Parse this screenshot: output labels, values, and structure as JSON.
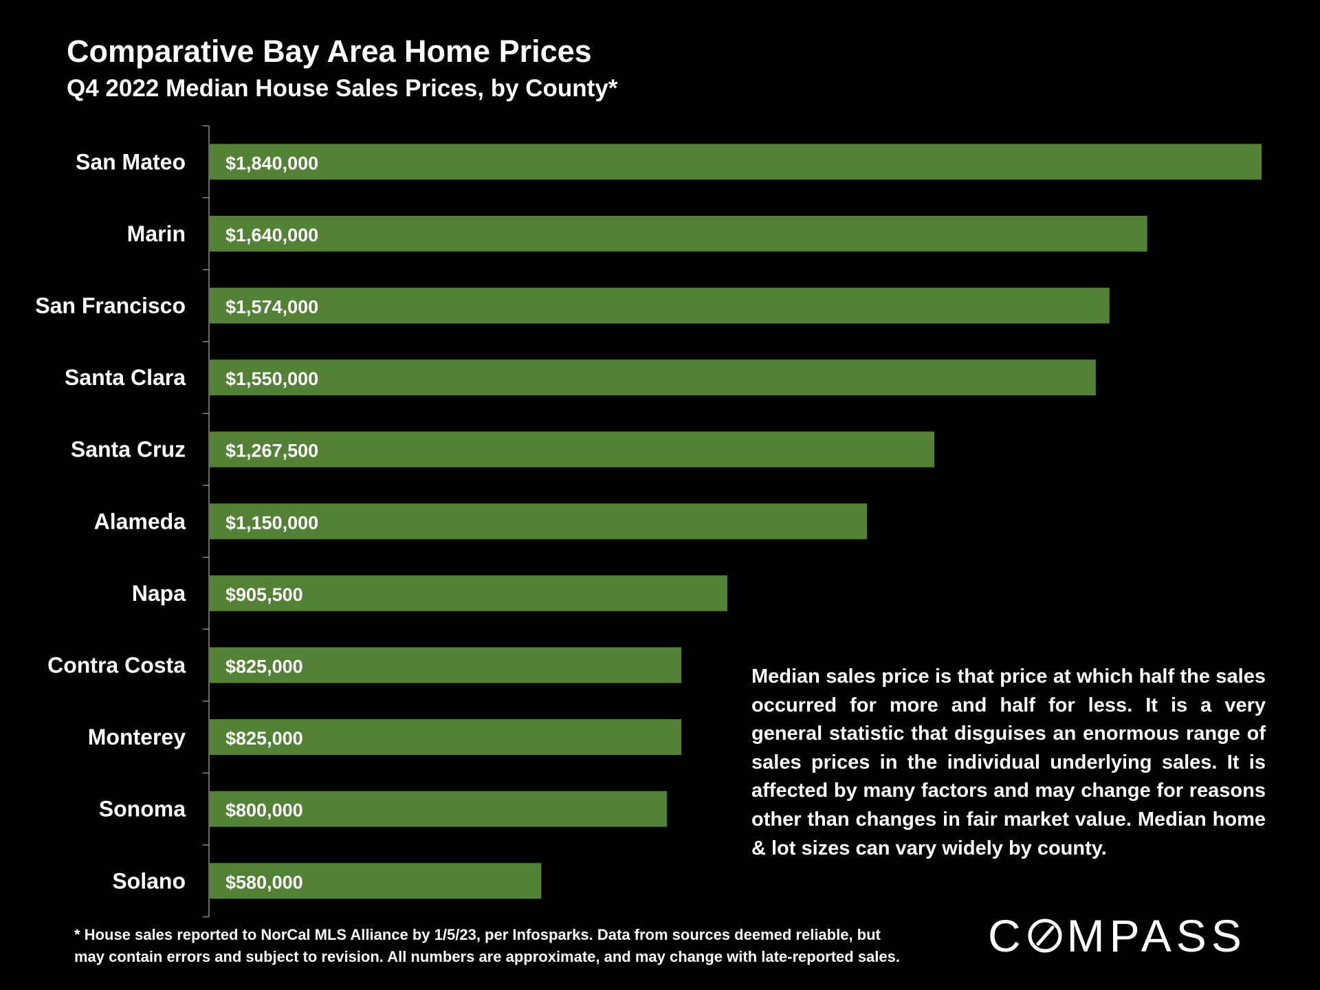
{
  "title": "Comparative Bay Area Home Prices",
  "subtitle": "Q4 2022 Median House Sales Prices, by County*",
  "chart_data": {
    "type": "bar",
    "orientation": "horizontal",
    "title": "Comparative Bay Area Home Prices",
    "subtitle": "Q4 2022 Median House Sales Prices, by County*",
    "categories": [
      "San Mateo",
      "Marin",
      "San Francisco",
      "Santa Clara",
      "Santa Cruz",
      "Alameda",
      "Napa",
      "Contra Costa",
      "Monterey",
      "Sonoma",
      "Solano"
    ],
    "values": [
      1840000,
      1640000,
      1574000,
      1550000,
      1267500,
      1150000,
      905500,
      825000,
      825000,
      800000,
      580000
    ],
    "value_labels": [
      "$1,840,000",
      "$1,640,000",
      "$1,574,000",
      "$1,550,000",
      "$1,267,500",
      "$1,150,000",
      "$905,500",
      "$825,000",
      "$825,000",
      "$800,000",
      "$580,000"
    ],
    "xlim": [
      0,
      1880000
    ],
    "xlabel": "",
    "ylabel": "",
    "grid": false,
    "legend": "none",
    "bar_color": "#538135"
  },
  "note": "Median sales price is that price at which half the sales occurred for more and half for less. It is a very general statistic that disguises an enormous range of sales prices in the individual underlying sales. It is affected by many factors and may change for reasons other than changes in fair market value. Median home & lot sizes can vary widely by county.",
  "footnote": {
    "line1": "* House sales reported to NorCal MLS Alliance by 1/5/23, per Infosparks. Data from sources deemed reliable, but",
    "line2": "may contain errors and subject to revision. All numbers are approximate, and may change with late-reported sales."
  },
  "logo": {
    "before": "C",
    "after": "MPASS",
    "icon": "compass-o-icon"
  }
}
